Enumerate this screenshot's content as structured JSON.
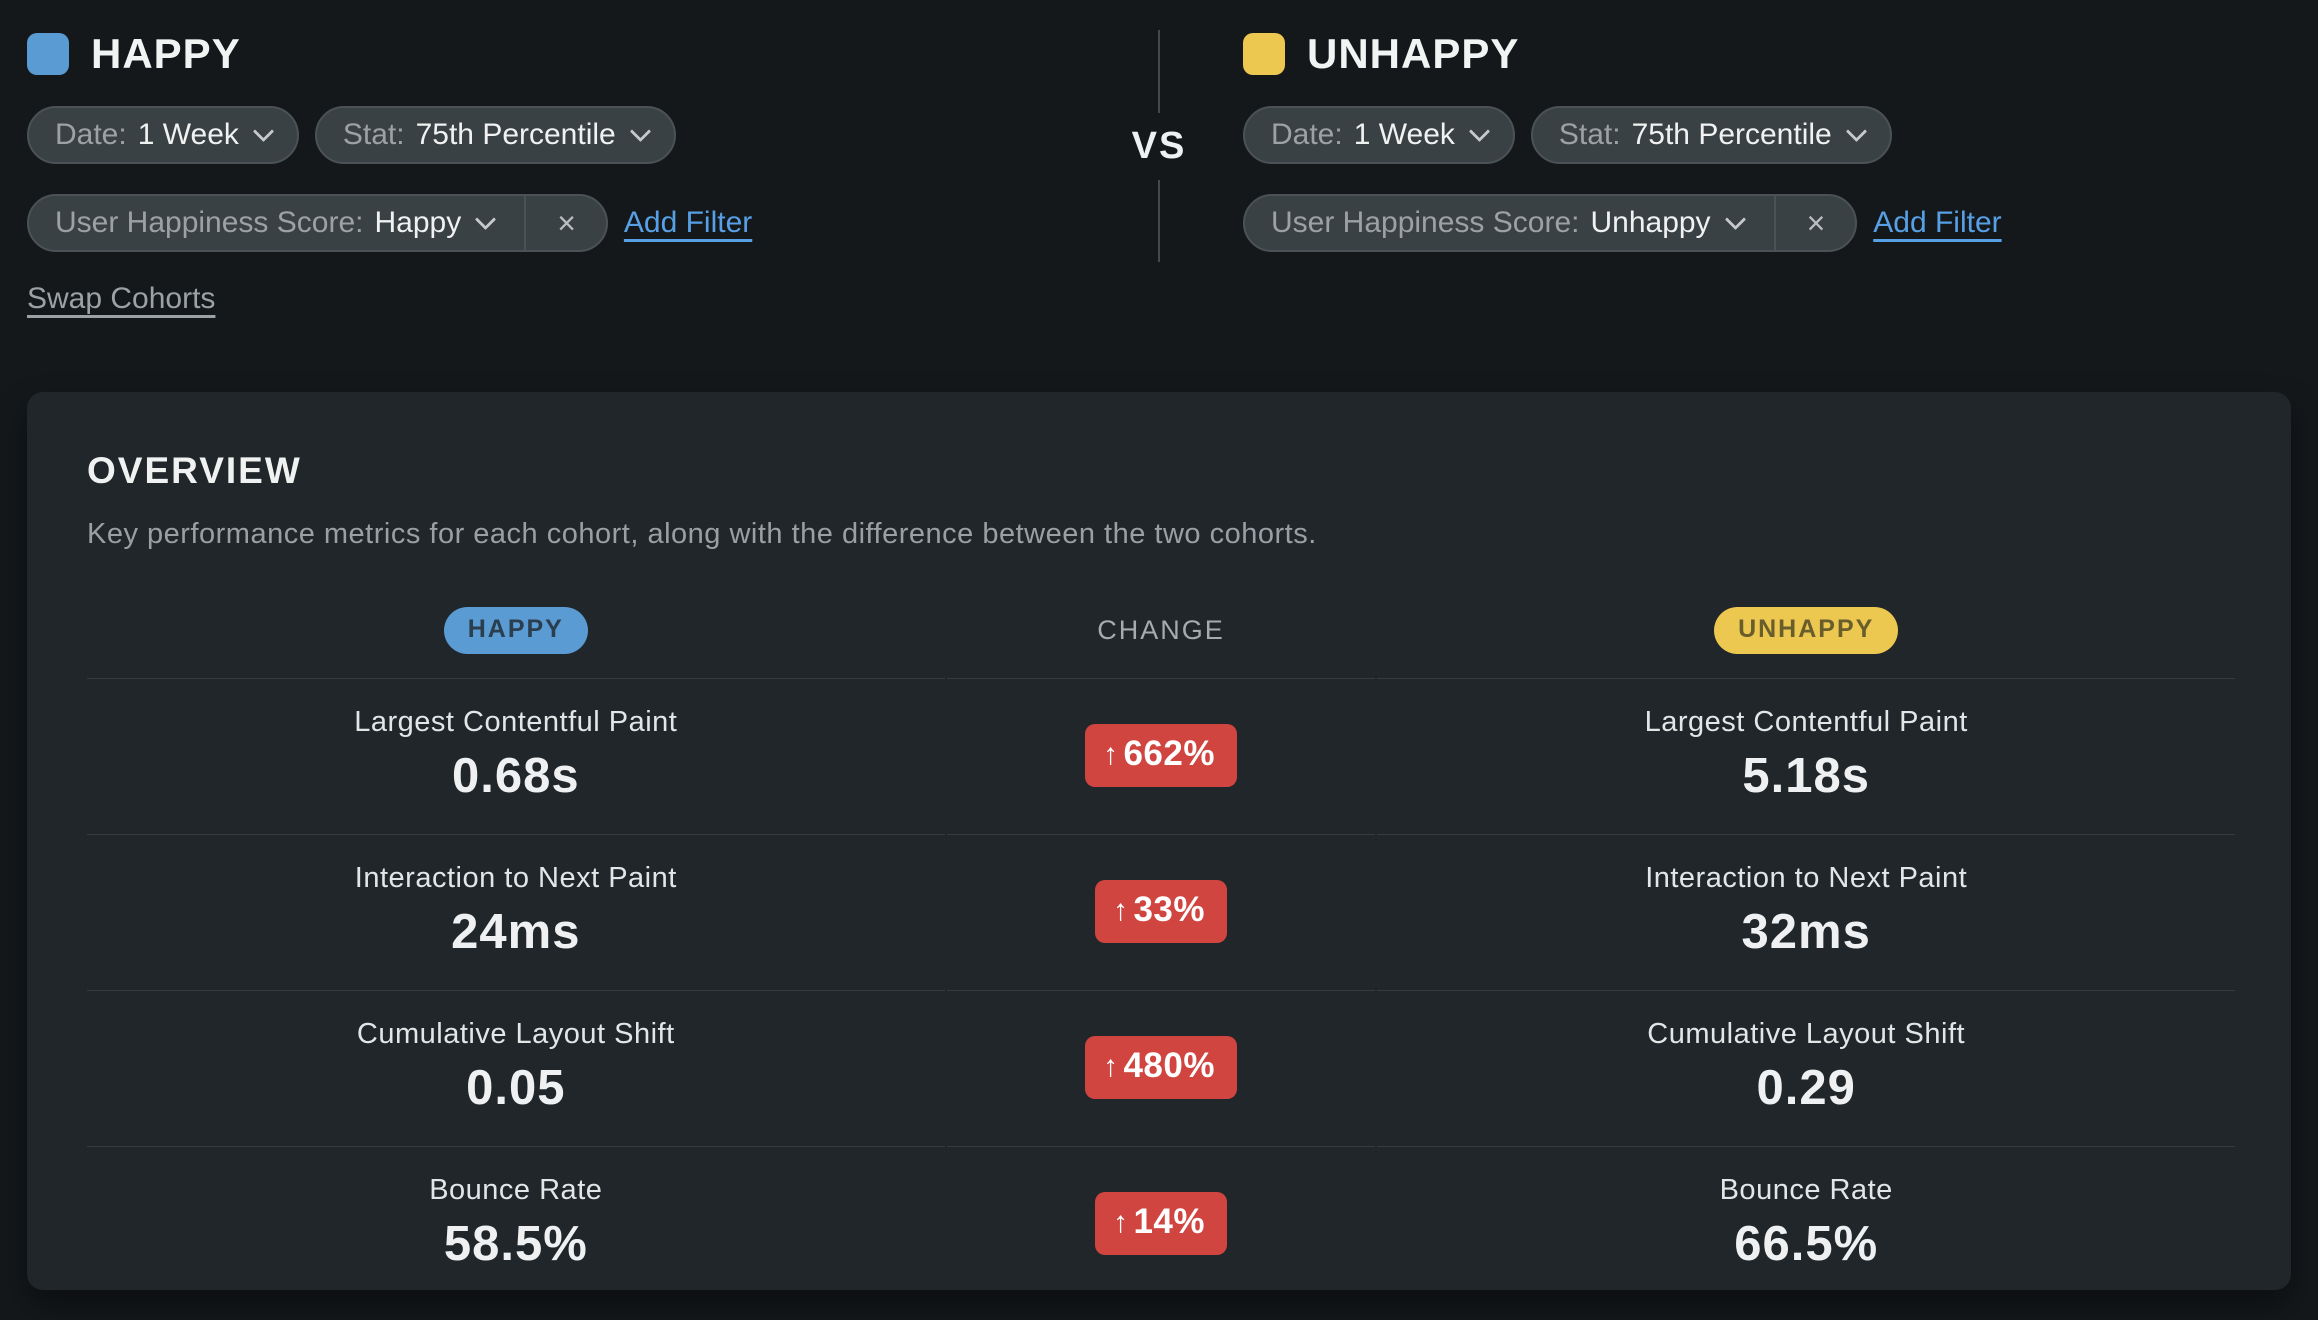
{
  "cohorts": {
    "vs_label": "VS",
    "swap_cohorts_label": "Swap Cohorts",
    "happy": {
      "title": "HAPPY",
      "swatch_color": "#5b9bd3",
      "filters": {
        "date": {
          "label": "Date:",
          "value": "1 Week"
        },
        "stat": {
          "label": "Stat:",
          "value": "75th Percentile"
        },
        "score": {
          "label": "User Happiness Score:",
          "value": "Happy"
        }
      },
      "add_filter_label": "Add Filter"
    },
    "unhappy": {
      "title": "UNHAPPY",
      "swatch_color": "#ecc851",
      "filters": {
        "date": {
          "label": "Date:",
          "value": "1 Week"
        },
        "stat": {
          "label": "Stat:",
          "value": "75th Percentile"
        },
        "score": {
          "label": "User Happiness Score:",
          "value": "Unhappy"
        }
      },
      "add_filter_label": "Add Filter"
    }
  },
  "overview": {
    "title": "OVERVIEW",
    "subtitle": "Key performance metrics for each cohort, along with the difference between the two cohorts.",
    "column_headers": {
      "left": "HAPPY",
      "center": "CHANGE",
      "right": "UNHAPPY"
    },
    "rows": [
      {
        "metric": "Largest Contentful Paint",
        "happy_value": "0.68s",
        "change": "662%",
        "change_direction": "up",
        "unhappy_value": "5.18s"
      },
      {
        "metric": "Interaction to Next Paint",
        "happy_value": "24ms",
        "change": "33%",
        "change_direction": "up",
        "unhappy_value": "32ms"
      },
      {
        "metric": "Cumulative Layout Shift",
        "happy_value": "0.05",
        "change": "480%",
        "change_direction": "up",
        "unhappy_value": "0.29"
      },
      {
        "metric": "Bounce Rate",
        "happy_value": "58.5%",
        "change": "14%",
        "change_direction": "up",
        "unhappy_value": "66.5%"
      }
    ]
  },
  "icons": {
    "chevron_down_icon": "chevron-down (css shape)",
    "close_icon": "×",
    "increase_arrow_icon": "↑"
  },
  "colors": {
    "page_background": "#14181b",
    "card_background": "#20262a",
    "happy_accent": "#5b9bd3",
    "unhappy_accent": "#ecc851",
    "change_badge_red": "#d0453f",
    "link_blue": "#57a0e5",
    "divider": "#353c40"
  }
}
